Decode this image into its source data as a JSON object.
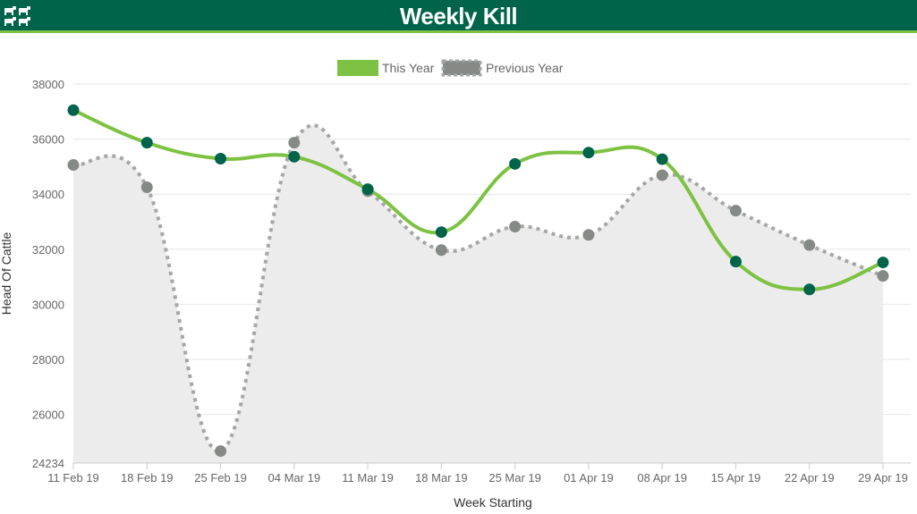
{
  "header": {
    "title": "Weekly Kill",
    "logo_icon": "cattle-herd-icon"
  },
  "colors": {
    "header_bg": "#00644b",
    "header_accent": "#7dc242",
    "this_year_line": "#7dc242",
    "this_year_marker": "#00644b",
    "previous_year_line": "#a6a6a6",
    "previous_year_marker": "#858a86",
    "area_fill": "#ececec"
  },
  "chart_data": {
    "type": "line",
    "title": "",
    "xlabel": "Week Starting",
    "ylabel": "Head Of Cattle",
    "categories": [
      "11 Feb 19",
      "18 Feb 19",
      "25 Feb 19",
      "04 Mar 19",
      "11 Mar 19",
      "18 Mar 19",
      "25 Mar 19",
      "01 Apr 19",
      "08 Apr 19",
      "15 Apr 19",
      "22 Apr 19",
      "29 Apr 19"
    ],
    "series": [
      {
        "name": "This Year",
        "style": "solid",
        "values": [
          37050,
          35870,
          35290,
          35360,
          34180,
          32620,
          35100,
          35510,
          35270,
          31550,
          30540,
          31520
        ]
      },
      {
        "name": "Previous Year",
        "style": "dotted",
        "values": [
          35060,
          34250,
          24670,
          35870,
          34110,
          31970,
          32820,
          32520,
          34690,
          33400,
          32150,
          31030
        ]
      }
    ],
    "ylim": [
      24234,
      38000
    ],
    "yticks": [
      24234,
      26000,
      28000,
      30000,
      32000,
      34000,
      36000,
      38000
    ],
    "grid": true,
    "legend": "top-center",
    "area_under": "Previous Year"
  }
}
